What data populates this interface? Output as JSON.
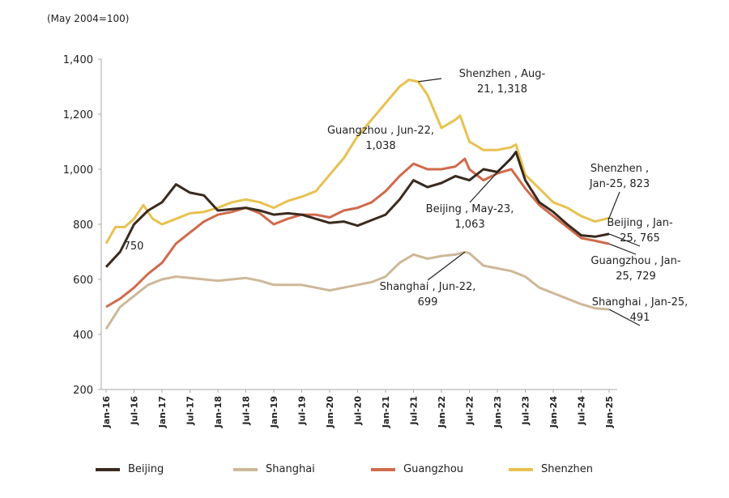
{
  "chart_data": {
    "type": "line",
    "unit_label": "(May 2004=100)",
    "ylim": [
      200,
      1400
    ],
    "yticks": [
      200,
      400,
      600,
      800,
      1000,
      1200,
      1400
    ],
    "ytick_labels": [
      "200",
      "400",
      "600",
      "800",
      "1,000",
      "1,200",
      "1,400"
    ],
    "xtick_labels": [
      "Jan-16",
      "Jul-16",
      "Jan-17",
      "Jul-17",
      "Jan-18",
      "Jul-18",
      "Jan-19",
      "Jul-19",
      "Jan-20",
      "Jul-20",
      "Jan-21",
      "Jul-21",
      "Jan-22",
      "Jul-22",
      "Jan-23",
      "Jul-23",
      "Jan-24",
      "Jul-24",
      "Jan-25"
    ],
    "x_unit": "months since Jan-16",
    "legend_position": "bottom",
    "series": [
      {
        "name": "Beijing",
        "color": "#3a2a1e",
        "points": [
          [
            0,
            645
          ],
          [
            3,
            700
          ],
          [
            6,
            800
          ],
          [
            9,
            850
          ],
          [
            12,
            880
          ],
          [
            15,
            945
          ],
          [
            18,
            915
          ],
          [
            21,
            905
          ],
          [
            24,
            850
          ],
          [
            27,
            855
          ],
          [
            30,
            860
          ],
          [
            33,
            850
          ],
          [
            36,
            835
          ],
          [
            39,
            840
          ],
          [
            42,
            835
          ],
          [
            45,
            820
          ],
          [
            48,
            805
          ],
          [
            51,
            810
          ],
          [
            54,
            795
          ],
          [
            57,
            815
          ],
          [
            60,
            835
          ],
          [
            63,
            890
          ],
          [
            66,
            960
          ],
          [
            69,
            935
          ],
          [
            72,
            950
          ],
          [
            75,
            975
          ],
          [
            78,
            960
          ],
          [
            81,
            1000
          ],
          [
            84,
            990
          ],
          [
            87,
            1040
          ],
          [
            88,
            1063
          ],
          [
            90,
            960
          ],
          [
            93,
            880
          ],
          [
            96,
            845
          ],
          [
            99,
            800
          ],
          [
            102,
            760
          ],
          [
            105,
            755
          ],
          [
            108,
            765
          ]
        ]
      },
      {
        "name": "Shanghai",
        "color": "#cdb898",
        "points": [
          [
            0,
            420
          ],
          [
            3,
            500
          ],
          [
            6,
            540
          ],
          [
            9,
            580
          ],
          [
            12,
            600
          ],
          [
            15,
            610
          ],
          [
            18,
            605
          ],
          [
            21,
            600
          ],
          [
            24,
            595
          ],
          [
            27,
            600
          ],
          [
            30,
            605
          ],
          [
            33,
            595
          ],
          [
            36,
            580
          ],
          [
            39,
            580
          ],
          [
            42,
            580
          ],
          [
            45,
            570
          ],
          [
            48,
            560
          ],
          [
            51,
            570
          ],
          [
            54,
            580
          ],
          [
            57,
            590
          ],
          [
            60,
            610
          ],
          [
            63,
            660
          ],
          [
            66,
            690
          ],
          [
            69,
            675
          ],
          [
            72,
            685
          ],
          [
            75,
            690
          ],
          [
            77,
            699
          ],
          [
            78,
            695
          ],
          [
            81,
            650
          ],
          [
            84,
            640
          ],
          [
            87,
            630
          ],
          [
            90,
            610
          ],
          [
            93,
            570
          ],
          [
            96,
            550
          ],
          [
            99,
            530
          ],
          [
            102,
            510
          ],
          [
            105,
            495
          ],
          [
            108,
            491
          ]
        ]
      },
      {
        "name": "Guangzhou",
        "color": "#cf6a4c",
        "points": [
          [
            0,
            500
          ],
          [
            3,
            530
          ],
          [
            6,
            570
          ],
          [
            9,
            620
          ],
          [
            12,
            660
          ],
          [
            15,
            730
          ],
          [
            18,
            770
          ],
          [
            21,
            810
          ],
          [
            24,
            835
          ],
          [
            27,
            845
          ],
          [
            30,
            860
          ],
          [
            33,
            840
          ],
          [
            36,
            800
          ],
          [
            39,
            820
          ],
          [
            42,
            835
          ],
          [
            45,
            835
          ],
          [
            48,
            825
          ],
          [
            51,
            850
          ],
          [
            54,
            860
          ],
          [
            57,
            880
          ],
          [
            60,
            920
          ],
          [
            63,
            975
          ],
          [
            66,
            1020
          ],
          [
            69,
            1000
          ],
          [
            72,
            1000
          ],
          [
            75,
            1010
          ],
          [
            77,
            1038
          ],
          [
            78,
            1000
          ],
          [
            81,
            960
          ],
          [
            84,
            985
          ],
          [
            87,
            1000
          ],
          [
            90,
            930
          ],
          [
            93,
            870
          ],
          [
            96,
            830
          ],
          [
            99,
            790
          ],
          [
            102,
            750
          ],
          [
            105,
            740
          ],
          [
            108,
            729
          ]
        ]
      },
      {
        "name": "Shenzhen",
        "color": "#e8c150",
        "points": [
          [
            0,
            730
          ],
          [
            2,
            790
          ],
          [
            4,
            790
          ],
          [
            6,
            820
          ],
          [
            8,
            870
          ],
          [
            10,
            820
          ],
          [
            12,
            800
          ],
          [
            15,
            820
          ],
          [
            18,
            840
          ],
          [
            21,
            845
          ],
          [
            24,
            860
          ],
          [
            27,
            880
          ],
          [
            30,
            890
          ],
          [
            33,
            880
          ],
          [
            36,
            860
          ],
          [
            39,
            885
          ],
          [
            42,
            900
          ],
          [
            45,
            920
          ],
          [
            48,
            980
          ],
          [
            51,
            1040
          ],
          [
            54,
            1120
          ],
          [
            57,
            1180
          ],
          [
            60,
            1240
          ],
          [
            63,
            1300
          ],
          [
            65,
            1325
          ],
          [
            67,
            1318
          ],
          [
            69,
            1270
          ],
          [
            72,
            1150
          ],
          [
            75,
            1180
          ],
          [
            76,
            1195
          ],
          [
            78,
            1100
          ],
          [
            81,
            1070
          ],
          [
            84,
            1070
          ],
          [
            87,
            1080
          ],
          [
            88,
            1090
          ],
          [
            90,
            980
          ],
          [
            93,
            930
          ],
          [
            96,
            880
          ],
          [
            99,
            860
          ],
          [
            102,
            830
          ],
          [
            105,
            810
          ],
          [
            108,
            823
          ]
        ]
      }
    ],
    "annotations": [
      {
        "lines": [
          "Shenzhen , Aug-",
          "21,  1,318"
        ],
        "series": "Shenzhen",
        "month": 67
      },
      {
        "lines": [
          "Guangzhou , Jun-22,",
          "1,038"
        ],
        "series": "Guangzhou",
        "month": 77
      },
      {
        "lines": [
          "Beijing , May-23,",
          "1,063"
        ],
        "series": "Beijing",
        "month": 88
      },
      {
        "lines": [
          "Shanghai , Jun-22,",
          "699"
        ],
        "series": "Shanghai",
        "month": 77
      },
      {
        "lines": [
          "Shenzhen ,",
          "Jan-25,  823"
        ],
        "series": "Shenzhen",
        "month": 108
      },
      {
        "lines": [
          "Beijing , Jan-",
          "25,  765"
        ],
        "series": "Beijing",
        "month": 108
      },
      {
        "lines": [
          "Guangzhou , Jan-",
          "25,  729"
        ],
        "series": "Guangzhou",
        "month": 108
      },
      {
        "lines": [
          "Shanghai , Jan-25,",
          "491"
        ],
        "series": "Shanghai",
        "month": 108
      },
      {
        "lines": [
          "750"
        ],
        "series": "Beijing",
        "month": 4
      }
    ]
  }
}
